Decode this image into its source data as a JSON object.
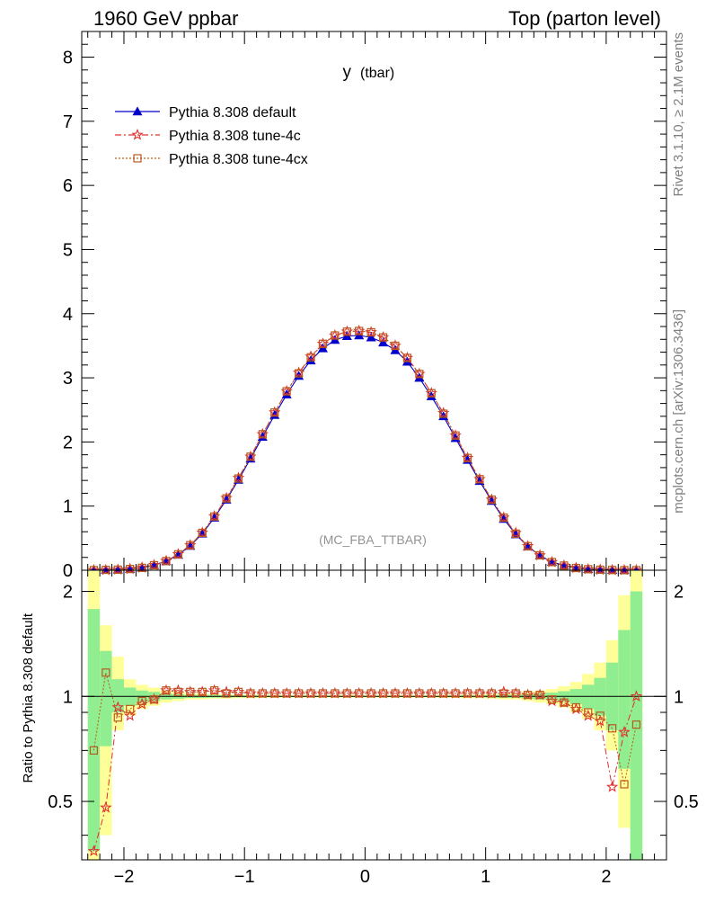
{
  "header": {
    "left": "1960 GeV ppbar",
    "right": "Top (parton level)"
  },
  "side": {
    "rivet": "Rivet 3.1.10, ≥ 2.1M events",
    "mcplots": "mcplots.cern.ch [arXiv:1306.3436]"
  },
  "chart_data": {
    "type": "line",
    "title_main": "y",
    "title_sub": "(tbar)",
    "watermark": "(MC_FBA_TTBAR)",
    "ratio_ylabel": "Ratio to Pythia 8.308 default",
    "xlim": [
      -2.35,
      2.5
    ],
    "ylim": [
      0,
      8.4
    ],
    "ratio_ylim": [
      0.34,
      2.3
    ],
    "x_ticks": [
      -2,
      -1,
      0,
      1,
      2
    ],
    "x_tick_labels": [
      "−2",
      "−1",
      "0",
      "1",
      "2"
    ],
    "y_ticks": [
      0,
      1,
      2,
      3,
      4,
      5,
      6,
      7,
      8
    ],
    "y_tick_labels": [
      "0",
      "1",
      "2",
      "3",
      "4",
      "5",
      "6",
      "7",
      "8"
    ],
    "ratio_ticks": [
      0.5,
      1,
      2
    ],
    "ratio_tick_labels": [
      "0.5",
      "1",
      "2"
    ],
    "legend": [
      {
        "name": "Pythia 8.308 default",
        "color": "#0000cc",
        "marker": "triangle",
        "dash": ""
      },
      {
        "name": "Pythia 8.308 tune-4c",
        "color": "#e03030",
        "marker": "star",
        "dash": "7,3,2,3"
      },
      {
        "name": "Pythia 8.308 tune-4cx",
        "color": "#b85a1e",
        "marker": "square",
        "dash": "2,2"
      }
    ],
    "series": [
      {
        "name": "Pythia 8.308 default",
        "x": [
          -2.25,
          -2.15,
          -2.05,
          -1.95,
          -1.85,
          -1.75,
          -1.65,
          -1.55,
          -1.45,
          -1.35,
          -1.25,
          -1.15,
          -1.05,
          -0.95,
          -0.85,
          -0.75,
          -0.65,
          -0.55,
          -0.45,
          -0.35,
          -0.25,
          -0.15,
          -0.05,
          0.05,
          0.15,
          0.25,
          0.35,
          0.45,
          0.55,
          0.65,
          0.75,
          0.85,
          0.95,
          1.05,
          1.15,
          1.25,
          1.35,
          1.45,
          1.55,
          1.65,
          1.75,
          1.85,
          1.95,
          2.05,
          2.15,
          2.25
        ],
        "y": [
          0.002,
          0.005,
          0.01,
          0.02,
          0.04,
          0.08,
          0.14,
          0.24,
          0.38,
          0.57,
          0.82,
          1.1,
          1.41,
          1.74,
          2.08,
          2.42,
          2.74,
          3.03,
          3.27,
          3.46,
          3.59,
          3.65,
          3.66,
          3.63,
          3.55,
          3.43,
          3.25,
          3.0,
          2.71,
          2.4,
          2.06,
          1.72,
          1.39,
          1.08,
          0.8,
          0.56,
          0.37,
          0.23,
          0.13,
          0.075,
          0.038,
          0.018,
          0.009,
          0.004,
          0.002,
          0.001
        ]
      },
      {
        "name": "Pythia 8.308 tune-4c",
        "x": [
          -2.25,
          -2.15,
          -2.05,
          -1.95,
          -1.85,
          -1.75,
          -1.65,
          -1.55,
          -1.45,
          -1.35,
          -1.25,
          -1.15,
          -1.05,
          -0.95,
          -0.85,
          -0.75,
          -0.65,
          -0.55,
          -0.45,
          -0.35,
          -0.25,
          -0.15,
          -0.05,
          0.05,
          0.15,
          0.25,
          0.35,
          0.45,
          0.55,
          0.65,
          0.75,
          0.85,
          0.95,
          1.05,
          1.15,
          1.25,
          1.35,
          1.45,
          1.55,
          1.65,
          1.75,
          1.85,
          1.95,
          2.05,
          2.15,
          2.25
        ],
        "y": [
          0.001,
          0.003,
          0.009,
          0.019,
          0.04,
          0.08,
          0.145,
          0.25,
          0.39,
          0.585,
          0.84,
          1.125,
          1.44,
          1.77,
          2.12,
          2.46,
          2.79,
          3.08,
          3.33,
          3.53,
          3.66,
          3.72,
          3.73,
          3.71,
          3.63,
          3.5,
          3.31,
          3.06,
          2.76,
          2.45,
          2.1,
          1.75,
          1.42,
          1.1,
          0.82,
          0.58,
          0.375,
          0.232,
          0.126,
          0.072,
          0.035,
          0.016,
          0.008,
          0.0024,
          0.0016,
          0.001
        ]
      },
      {
        "name": "Pythia 8.308 tune-4cx",
        "x": [
          -2.25,
          -2.15,
          -2.05,
          -1.95,
          -1.85,
          -1.75,
          -1.65,
          -1.55,
          -1.45,
          -1.35,
          -1.25,
          -1.15,
          -1.05,
          -0.95,
          -0.85,
          -0.75,
          -0.65,
          -0.55,
          -0.45,
          -0.35,
          -0.25,
          -0.15,
          -0.05,
          0.05,
          0.15,
          0.25,
          0.35,
          0.45,
          0.55,
          0.65,
          0.75,
          0.85,
          0.95,
          1.05,
          1.15,
          1.25,
          1.35,
          1.45,
          1.55,
          1.65,
          1.75,
          1.85,
          1.95,
          2.05,
          2.15,
          2.25
        ],
        "y": [
          0.0014,
          0.006,
          0.0087,
          0.0194,
          0.0372,
          0.078,
          0.143,
          0.248,
          0.39,
          0.583,
          0.838,
          1.12,
          1.43,
          1.77,
          2.12,
          2.46,
          2.79,
          3.07,
          3.32,
          3.53,
          3.66,
          3.72,
          3.73,
          3.71,
          3.63,
          3.5,
          3.31,
          3.06,
          2.76,
          2.44,
          2.1,
          1.75,
          1.42,
          1.1,
          0.82,
          0.57,
          0.375,
          0.232,
          0.127,
          0.072,
          0.035,
          0.016,
          0.008,
          0.0032,
          0.0011,
          0.0008
        ]
      }
    ],
    "ratio_series": [
      {
        "name": "Pythia 8.308 tune-4c",
        "y": [
          0.36,
          0.48,
          0.93,
          0.88,
          0.95,
          0.98,
          1.04,
          1.04,
          1.03,
          1.03,
          1.04,
          1.03,
          1.03,
          1.02,
          1.02,
          1.02,
          1.02,
          1.02,
          1.02,
          1.02,
          1.02,
          1.02,
          1.02,
          1.02,
          1.02,
          1.02,
          1.02,
          1.02,
          1.02,
          1.02,
          1.02,
          1.02,
          1.02,
          1.02,
          1.03,
          1.02,
          1.01,
          1.01,
          0.97,
          0.96,
          0.92,
          0.88,
          0.85,
          0.55,
          0.79,
          1.0
        ]
      },
      {
        "name": "Pythia 8.308 tune-4cx",
        "y": [
          0.7,
          1.17,
          0.87,
          0.92,
          0.97,
          0.98,
          1.04,
          1.03,
          1.03,
          1.03,
          1.04,
          1.02,
          1.03,
          1.02,
          1.02,
          1.02,
          1.02,
          1.02,
          1.02,
          1.02,
          1.02,
          1.02,
          1.02,
          1.02,
          1.02,
          1.02,
          1.02,
          1.02,
          1.02,
          1.02,
          1.02,
          1.02,
          1.02,
          1.02,
          1.02,
          1.02,
          1.01,
          1.01,
          0.98,
          0.96,
          0.93,
          0.9,
          0.88,
          0.81,
          0.56,
          0.83
        ]
      }
    ],
    "band_inner": [
      [
        0.36,
        1.78
      ],
      [
        0.72,
        1.35
      ],
      [
        0.9,
        1.12
      ],
      [
        0.94,
        1.06
      ],
      [
        0.96,
        1.04
      ],
      [
        0.97,
        1.03
      ],
      [
        0.98,
        1.02
      ],
      [
        0.985,
        1.015
      ],
      [
        0.99,
        1.01
      ],
      [
        0.99,
        1.01
      ],
      [
        0.992,
        1.008
      ],
      [
        0.992,
        1.008
      ],
      [
        0.994,
        1.006
      ],
      [
        0.994,
        1.006
      ],
      [
        0.995,
        1.005
      ],
      [
        0.995,
        1.005
      ],
      [
        0.996,
        1.004
      ],
      [
        0.996,
        1.004
      ],
      [
        0.996,
        1.004
      ],
      [
        0.996,
        1.004
      ],
      [
        0.996,
        1.004
      ],
      [
        0.996,
        1.004
      ],
      [
        0.996,
        1.004
      ],
      [
        0.996,
        1.004
      ],
      [
        0.996,
        1.004
      ],
      [
        0.996,
        1.004
      ],
      [
        0.996,
        1.004
      ],
      [
        0.996,
        1.004
      ],
      [
        0.996,
        1.004
      ],
      [
        0.995,
        1.005
      ],
      [
        0.995,
        1.005
      ],
      [
        0.994,
        1.006
      ],
      [
        0.994,
        1.006
      ],
      [
        0.992,
        1.008
      ],
      [
        0.99,
        1.01
      ],
      [
        0.99,
        1.01
      ],
      [
        0.985,
        1.015
      ],
      [
        0.98,
        1.02
      ],
      [
        0.975,
        1.025
      ],
      [
        0.965,
        1.035
      ],
      [
        0.95,
        1.05
      ],
      [
        0.92,
        1.08
      ],
      [
        0.88,
        1.13
      ],
      [
        0.8,
        1.25
      ],
      [
        0.62,
        1.55
      ],
      [
        0.34,
        2.0
      ]
    ],
    "band_outer": [
      [
        0.34,
        2.3
      ],
      [
        0.4,
        1.6
      ],
      [
        0.8,
        1.3
      ],
      [
        0.88,
        1.12
      ],
      [
        0.92,
        1.08
      ],
      [
        0.94,
        1.06
      ],
      [
        0.96,
        1.04
      ],
      [
        0.97,
        1.03
      ],
      [
        0.98,
        1.02
      ],
      [
        0.98,
        1.02
      ],
      [
        0.985,
        1.015
      ],
      [
        0.985,
        1.015
      ],
      [
        0.988,
        1.012
      ],
      [
        0.988,
        1.012
      ],
      [
        0.99,
        1.01
      ],
      [
        0.99,
        1.01
      ],
      [
        0.992,
        1.008
      ],
      [
        0.992,
        1.008
      ],
      [
        0.992,
        1.008
      ],
      [
        0.992,
        1.008
      ],
      [
        0.992,
        1.008
      ],
      [
        0.992,
        1.008
      ],
      [
        0.992,
        1.008
      ],
      [
        0.992,
        1.008
      ],
      [
        0.992,
        1.008
      ],
      [
        0.992,
        1.008
      ],
      [
        0.992,
        1.008
      ],
      [
        0.992,
        1.008
      ],
      [
        0.992,
        1.008
      ],
      [
        0.99,
        1.01
      ],
      [
        0.99,
        1.01
      ],
      [
        0.988,
        1.012
      ],
      [
        0.988,
        1.012
      ],
      [
        0.985,
        1.015
      ],
      [
        0.98,
        1.02
      ],
      [
        0.98,
        1.02
      ],
      [
        0.97,
        1.03
      ],
      [
        0.96,
        1.04
      ],
      [
        0.95,
        1.05
      ],
      [
        0.93,
        1.07
      ],
      [
        0.9,
        1.1
      ],
      [
        0.86,
        1.16
      ],
      [
        0.8,
        1.25
      ],
      [
        0.7,
        1.45
      ],
      [
        0.42,
        1.95
      ],
      [
        0.34,
        2.3
      ]
    ],
    "colors": {
      "band_inner": "#90ee90",
      "band_outer": "#ffff99",
      "default": "#0000cc",
      "tune4c": "#e03030",
      "tune4cx": "#b85a1e"
    }
  }
}
